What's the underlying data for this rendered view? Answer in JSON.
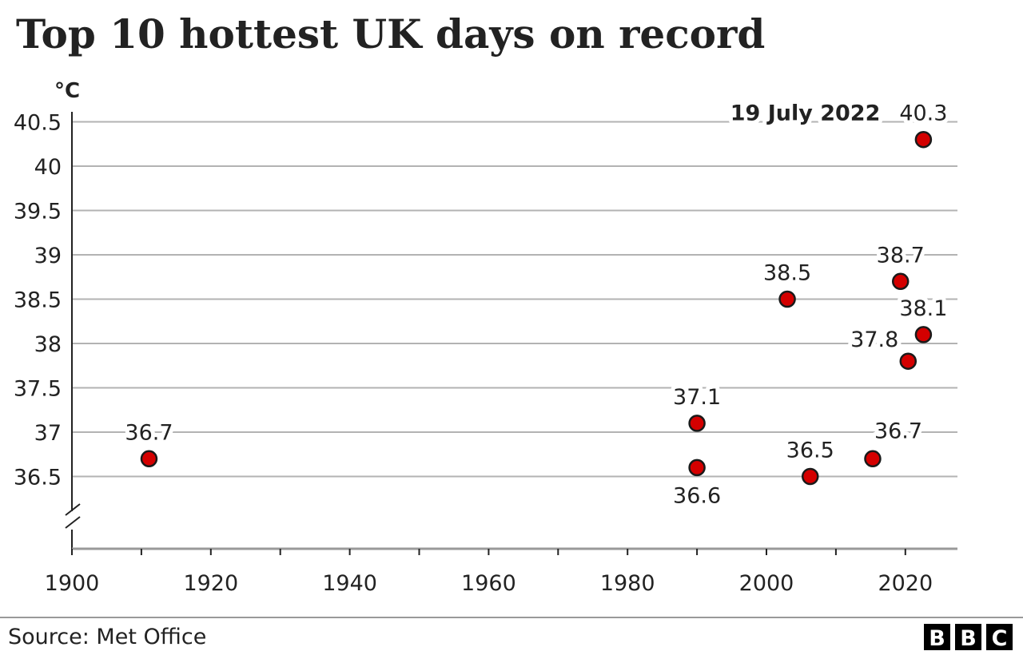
{
  "chart_data": {
    "type": "scatter",
    "title": "Top 10 hottest UK days on record",
    "ylabel": "°C",
    "xlabel": "",
    "xlim": [
      1900,
      2028
    ],
    "ylim": [
      36.0,
      40.6
    ],
    "y_axis_break": true,
    "x_ticks": [
      1900,
      1920,
      1940,
      1960,
      1980,
      2000,
      2020
    ],
    "y_ticks": [
      "36.5",
      "37",
      "37.5",
      "38",
      "38.5",
      "39",
      "39.5",
      "40",
      "40.5"
    ],
    "y_tick_values": [
      36.5,
      37,
      37.5,
      38,
      38.5,
      39,
      39.5,
      40,
      40.5
    ],
    "grid": true,
    "marker_color": "#d40000",
    "points": [
      {
        "x": 1911.1,
        "y": 36.7,
        "label": "36.7",
        "label_pos": "above"
      },
      {
        "x": 1990.0,
        "y": 37.1,
        "label": "37.1",
        "label_pos": "above"
      },
      {
        "x": 1990.0,
        "y": 36.6,
        "label": "36.6",
        "label_pos": "below"
      },
      {
        "x": 2003.0,
        "y": 38.5,
        "label": "38.5",
        "label_pos": "above"
      },
      {
        "x": 2006.3,
        "y": 36.5,
        "label": "36.5",
        "label_pos": "above"
      },
      {
        "x": 2015.3,
        "y": 36.7,
        "label": "36.7",
        "label_pos": "above-right"
      },
      {
        "x": 2019.3,
        "y": 38.7,
        "label": "38.7",
        "label_pos": "above"
      },
      {
        "x": 2020.4,
        "y": 37.8,
        "label": "37.8",
        "label_pos": "above-left"
      },
      {
        "x": 2022.6,
        "y": 38.1,
        "label": "38.1",
        "label_pos": "above"
      },
      {
        "x": 2022.6,
        "y": 40.3,
        "label": "40.3",
        "label_pos": "above"
      }
    ],
    "annotation": {
      "text": "19 July 2022",
      "x": 2022.6,
      "y": 40.3
    }
  },
  "footer": {
    "source": "Source: Met Office",
    "logo": [
      "B",
      "B",
      "C"
    ]
  }
}
